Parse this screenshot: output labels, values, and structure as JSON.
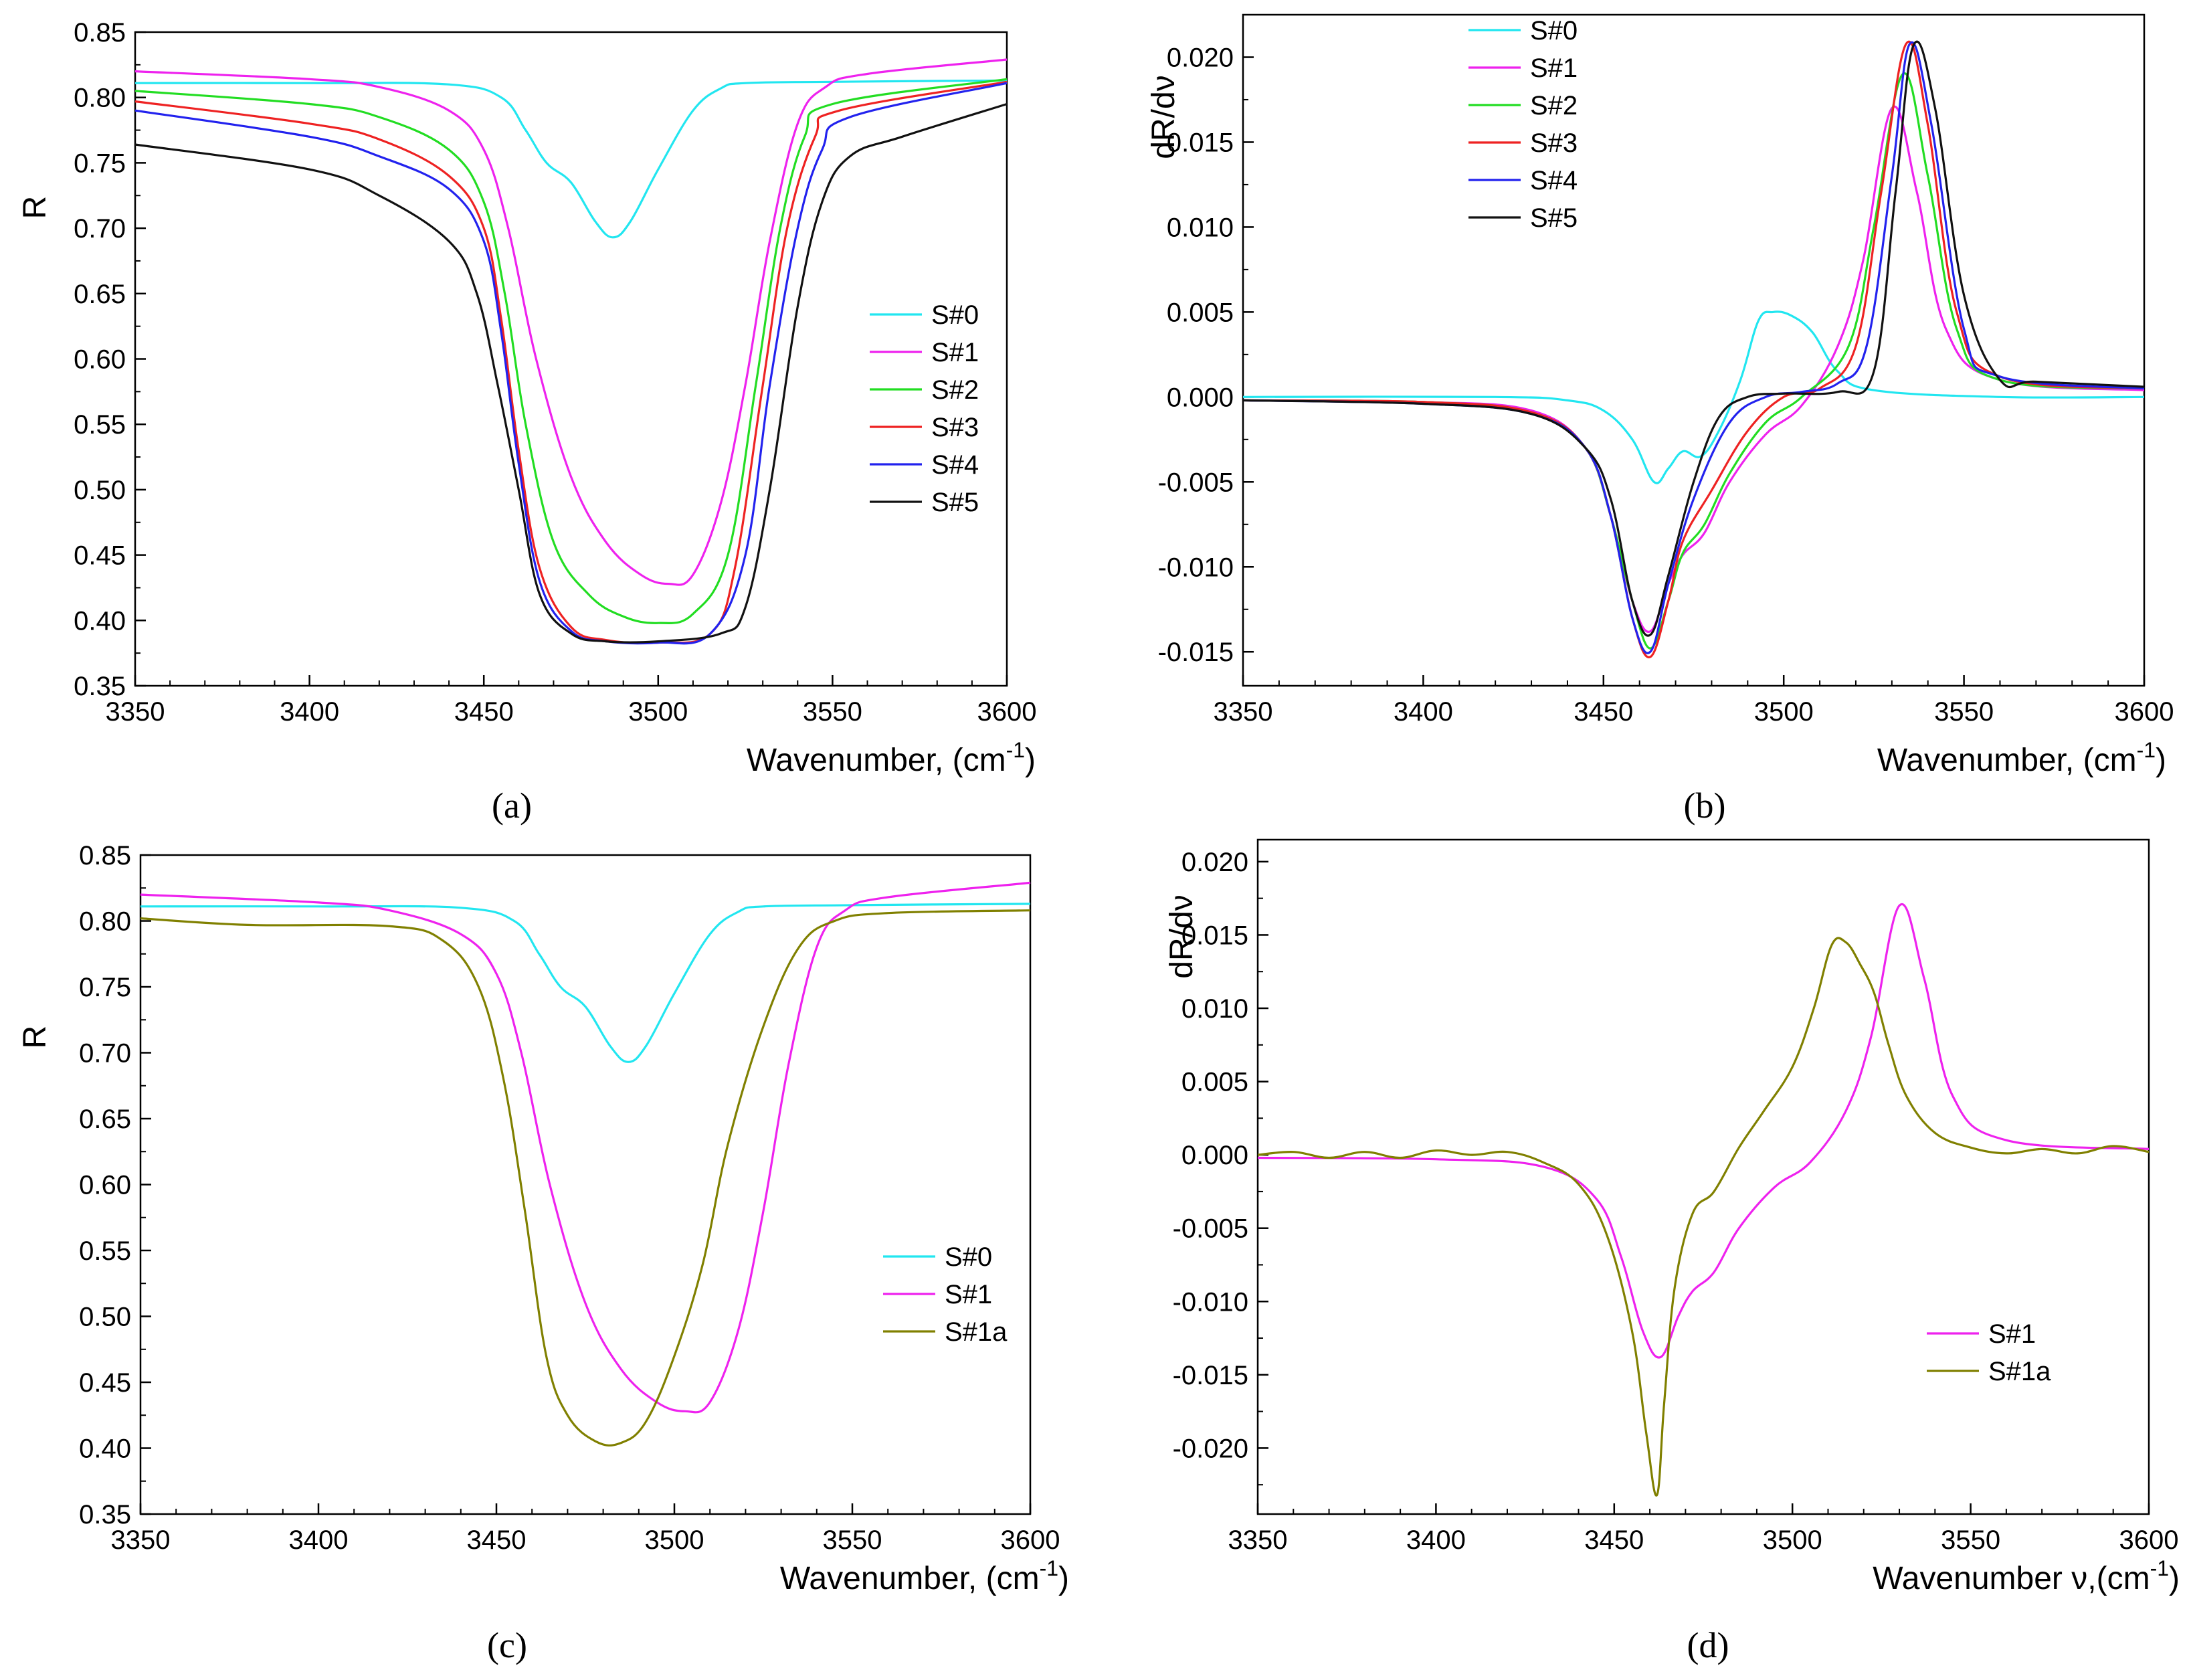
{
  "chart_data": [
    {
      "id": "a",
      "type": "line",
      "caption": "(a)",
      "xlabel": "Wavenumber,",
      "xunit": "(cm",
      "xunit_sup": "-1",
      "xunit_close": ")",
      "ylabel": "R",
      "xlim": [
        3350,
        3600
      ],
      "ylim": [
        0.35,
        0.85
      ],
      "xticks": [
        "3350",
        "3400",
        "3450",
        "3500",
        "3550",
        "3600"
      ],
      "yticks": [
        "0.35",
        "0.40",
        "0.45",
        "0.50",
        "0.55",
        "0.60",
        "0.65",
        "0.70",
        "0.75",
        "0.80",
        "0.85"
      ],
      "legend_position": "center-right",
      "series": [
        {
          "name": "S#0",
          "color": "#22e6f0",
          "x": [
            3350,
            3400,
            3440,
            3455,
            3462,
            3468,
            3475,
            3482,
            3487,
            3492,
            3500,
            3510,
            3518,
            3525,
            3550,
            3600
          ],
          "y": [
            0.811,
            0.811,
            0.81,
            0.8,
            0.775,
            0.75,
            0.735,
            0.705,
            0.693,
            0.705,
            0.745,
            0.79,
            0.807,
            0.811,
            0.812,
            0.813
          ]
        },
        {
          "name": "S#1",
          "color": "#ee22ee",
          "x": [
            3350,
            3400,
            3420,
            3440,
            3450,
            3457,
            3465,
            3475,
            3485,
            3495,
            3503,
            3510,
            3518,
            3525,
            3532,
            3540,
            3548,
            3560,
            3600
          ],
          "y": [
            0.82,
            0.814,
            0.808,
            0.79,
            0.76,
            0.7,
            0.6,
            0.51,
            0.46,
            0.435,
            0.428,
            0.435,
            0.49,
            0.58,
            0.69,
            0.78,
            0.808,
            0.818,
            0.829
          ]
        },
        {
          "name": "S#2",
          "color": "#22dd22",
          "x": [
            3350,
            3400,
            3420,
            3440,
            3450,
            3456,
            3462,
            3470,
            3480,
            3490,
            3500,
            3510,
            3520,
            3528,
            3535,
            3542,
            3550,
            3600
          ],
          "y": [
            0.805,
            0.795,
            0.785,
            0.76,
            0.72,
            0.65,
            0.55,
            0.46,
            0.42,
            0.403,
            0.398,
            0.405,
            0.45,
            0.58,
            0.7,
            0.77,
            0.795,
            0.814
          ]
        },
        {
          "name": "S#3",
          "color": "#ee2222",
          "x": [
            3350,
            3400,
            3420,
            3440,
            3450,
            3455,
            3460,
            3466,
            3475,
            3485,
            3500,
            3515,
            3522,
            3530,
            3537,
            3545,
            3552,
            3600
          ],
          "y": [
            0.797,
            0.78,
            0.768,
            0.74,
            0.7,
            0.63,
            0.53,
            0.44,
            0.395,
            0.385,
            0.383,
            0.39,
            0.44,
            0.58,
            0.7,
            0.77,
            0.79,
            0.812
          ]
        },
        {
          "name": "S#4",
          "color": "#2222ee",
          "x": [
            3350,
            3400,
            3420,
            3440,
            3450,
            3455,
            3460,
            3466,
            3475,
            3485,
            3500,
            3515,
            3525,
            3532,
            3540,
            3547,
            3555,
            3600
          ],
          "y": [
            0.79,
            0.77,
            0.755,
            0.73,
            0.69,
            0.62,
            0.52,
            0.43,
            0.392,
            0.384,
            0.383,
            0.39,
            0.45,
            0.58,
            0.7,
            0.76,
            0.785,
            0.811
          ]
        },
        {
          "name": "S#5",
          "color": "#111111",
          "x": [
            3350,
            3400,
            3420,
            3440,
            3448,
            3454,
            3460,
            3466,
            3475,
            3485,
            3500,
            3518,
            3525,
            3532,
            3540,
            3547,
            3555,
            3570,
            3600
          ],
          "y": [
            0.764,
            0.745,
            0.725,
            0.69,
            0.65,
            0.58,
            0.5,
            0.42,
            0.39,
            0.384,
            0.384,
            0.39,
            0.41,
            0.5,
            0.64,
            0.72,
            0.755,
            0.77,
            0.795
          ]
        }
      ]
    },
    {
      "id": "b",
      "type": "line",
      "caption": "(b)",
      "xlabel": "Wavenumber,",
      "xunit": "(cm",
      "xunit_sup": "-1",
      "xunit_close": ")",
      "ylabel": "dR/dν",
      "xlim": [
        3350,
        3600
      ],
      "ylim": [
        -0.017,
        0.0225
      ],
      "xticks": [
        "3350",
        "3400",
        "3450",
        "3500",
        "3550",
        "3600"
      ],
      "yticks": [
        "-0.015",
        "-0.010",
        "-0.005",
        "0.000",
        "0.005",
        "0.010",
        "0.015",
        "0.020"
      ],
      "ytick_values": [
        -0.015,
        -0.01,
        -0.005,
        0,
        0.005,
        0.01,
        0.015,
        0.02
      ],
      "legend_position": "top-left",
      "series": [
        {
          "name": "S#0",
          "color": "#22e6f0",
          "x": [
            3350,
            3420,
            3440,
            3450,
            3458,
            3464,
            3468,
            3472,
            3477,
            3482,
            3488,
            3493,
            3497,
            3502,
            3508,
            3515,
            3525,
            3560,
            3600
          ],
          "y": [
            0,
            0,
            -0.0002,
            -0.0008,
            -0.0025,
            -0.005,
            -0.0042,
            -0.0032,
            -0.0035,
            -0.002,
            0.001,
            0.0045,
            0.005,
            0.0048,
            0.0038,
            0.0015,
            0.0004,
            0,
            0
          ]
        },
        {
          "name": "S#1",
          "color": "#ee22ee",
          "x": [
            3350,
            3400,
            3430,
            3445,
            3452,
            3458,
            3463,
            3468,
            3472,
            3478,
            3485,
            3495,
            3505,
            3515,
            3522,
            3530,
            3537,
            3545,
            3560,
            3600
          ],
          "y": [
            -0.0002,
            -0.0003,
            -0.0008,
            -0.003,
            -0.007,
            -0.012,
            -0.0138,
            -0.011,
            -0.0093,
            -0.008,
            -0.005,
            -0.0022,
            -0.0005,
            0.003,
            0.008,
            0.017,
            0.012,
            0.004,
            0.001,
            0.0004
          ]
        },
        {
          "name": "S#2",
          "color": "#22dd22",
          "x": [
            3350,
            3400,
            3430,
            3445,
            3452,
            3458,
            3463,
            3468,
            3472,
            3478,
            3485,
            3495,
            3505,
            3518,
            3525,
            3533,
            3540,
            3548,
            3560,
            3600
          ],
          "y": [
            -0.0002,
            -0.0003,
            -0.0009,
            -0.003,
            -0.007,
            -0.012,
            -0.0148,
            -0.012,
            -0.0092,
            -0.0075,
            -0.0045,
            -0.0015,
            0,
            0.003,
            0.01,
            0.019,
            0.013,
            0.004,
            0.001,
            0.0005
          ]
        },
        {
          "name": "S#3",
          "color": "#ee2222",
          "x": [
            3350,
            3400,
            3430,
            3445,
            3452,
            3458,
            3463,
            3468,
            3472,
            3480,
            3490,
            3500,
            3510,
            3520,
            3527,
            3534,
            3540,
            3548,
            3560,
            3600
          ],
          "y": [
            -0.0002,
            -0.0003,
            -0.0009,
            -0.003,
            -0.007,
            -0.013,
            -0.0153,
            -0.012,
            -0.0085,
            -0.0055,
            -0.002,
            0,
            0.0005,
            0.003,
            0.012,
            0.0208,
            0.016,
            0.005,
            0.0012,
            0.0005
          ]
        },
        {
          "name": "S#4",
          "color": "#2222ee",
          "x": [
            3350,
            3400,
            3430,
            3445,
            3452,
            3458,
            3463,
            3468,
            3475,
            3485,
            3495,
            3505,
            3515,
            3523,
            3530,
            3535,
            3541,
            3550,
            3560,
            3600
          ],
          "y": [
            -0.0002,
            -0.0004,
            -0.001,
            -0.003,
            -0.007,
            -0.013,
            -0.015,
            -0.011,
            -0.006,
            -0.0015,
            0,
            0.0003,
            0.0008,
            0.003,
            0.013,
            0.0208,
            0.016,
            0.004,
            0.0012,
            0.0005
          ]
        },
        {
          "name": "S#5",
          "color": "#111111",
          "x": [
            3350,
            3400,
            3430,
            3445,
            3452,
            3458,
            3463,
            3468,
            3475,
            3482,
            3490,
            3500,
            3515,
            3525,
            3531,
            3536,
            3542,
            3550,
            3560,
            3570,
            3600
          ],
          "y": [
            -0.0002,
            -0.0004,
            -0.001,
            -0.003,
            -0.006,
            -0.012,
            -0.014,
            -0.0105,
            -0.005,
            -0.0012,
            0,
            0.0002,
            0.0003,
            0.0015,
            0.012,
            0.0207,
            0.017,
            0.006,
            0.001,
            0.0009,
            0.0006
          ]
        }
      ]
    },
    {
      "id": "c",
      "type": "line",
      "caption": "(c)",
      "xlabel": "Wavenumber,",
      "xunit": "(cm",
      "xunit_sup": "-1",
      "xunit_close": ")",
      "ylabel": "R",
      "xlim": [
        3350,
        3600
      ],
      "ylim": [
        0.35,
        0.85
      ],
      "xticks": [
        "3350",
        "3400",
        "3450",
        "3500",
        "3550",
        "3600"
      ],
      "yticks": [
        "0.35",
        "0.40",
        "0.45",
        "0.50",
        "0.55",
        "0.60",
        "0.65",
        "0.70",
        "0.75",
        "0.80",
        "0.85"
      ],
      "legend_position": "center-right",
      "series": [
        {
          "name": "S#0",
          "color": "#22e6f0",
          "x": [
            3350,
            3400,
            3440,
            3455,
            3462,
            3468,
            3475,
            3482,
            3487,
            3492,
            3500,
            3510,
            3518,
            3525,
            3550,
            3600
          ],
          "y": [
            0.811,
            0.811,
            0.81,
            0.8,
            0.775,
            0.75,
            0.735,
            0.705,
            0.693,
            0.705,
            0.745,
            0.79,
            0.807,
            0.811,
            0.812,
            0.813
          ]
        },
        {
          "name": "S#1",
          "color": "#ee22ee",
          "x": [
            3350,
            3400,
            3420,
            3440,
            3450,
            3457,
            3465,
            3475,
            3485,
            3495,
            3503,
            3510,
            3518,
            3525,
            3532,
            3540,
            3548,
            3560,
            3600
          ],
          "y": [
            0.82,
            0.814,
            0.808,
            0.79,
            0.76,
            0.7,
            0.6,
            0.51,
            0.46,
            0.435,
            0.428,
            0.435,
            0.49,
            0.58,
            0.69,
            0.78,
            0.808,
            0.818,
            0.829
          ]
        },
        {
          "name": "S#1a",
          "color": "#808000",
          "x": [
            3350,
            3380,
            3420,
            3435,
            3445,
            3452,
            3458,
            3464,
            3470,
            3478,
            3485,
            3492,
            3500,
            3508,
            3515,
            3525,
            3535,
            3545,
            3560,
            3600
          ],
          "y": [
            0.802,
            0.797,
            0.796,
            0.785,
            0.75,
            0.68,
            0.58,
            0.47,
            0.425,
            0.405,
            0.404,
            0.42,
            0.47,
            0.54,
            0.63,
            0.72,
            0.78,
            0.8,
            0.806,
            0.808
          ]
        }
      ]
    },
    {
      "id": "d",
      "type": "line",
      "caption": "(d)",
      "xlabel": "Wavenumber",
      "xsym": "ν,",
      "xunit": "(cm",
      "xunit_sup": "-1",
      "xunit_close": ")",
      "ylabel": "dR/dν",
      "xlim": [
        3350,
        3600
      ],
      "ylim": [
        -0.0245,
        0.0215
      ],
      "xticks": [
        "3350",
        "3400",
        "3450",
        "3500",
        "3550",
        "3600"
      ],
      "yticks": [
        "-0.020",
        "-0.015",
        "-0.010",
        "-0.005",
        "0.000",
        "0.005",
        "0.010",
        "0.015",
        "0.020"
      ],
      "ytick_values": [
        -0.02,
        -0.015,
        -0.01,
        -0.005,
        0,
        0.005,
        0.01,
        0.015,
        0.02
      ],
      "legend_position": "bottom-right",
      "series": [
        {
          "name": "S#1",
          "color": "#ee22ee",
          "x": [
            3350,
            3400,
            3430,
            3445,
            3452,
            3458,
            3463,
            3468,
            3472,
            3478,
            3485,
            3495,
            3505,
            3515,
            3522,
            3530,
            3537,
            3545,
            3560,
            3600
          ],
          "y": [
            -0.0002,
            -0.0003,
            -0.0008,
            -0.003,
            -0.007,
            -0.012,
            -0.0138,
            -0.011,
            -0.0093,
            -0.008,
            -0.005,
            -0.0022,
            -0.0005,
            0.003,
            0.008,
            0.017,
            0.012,
            0.004,
            0.001,
            0.0004
          ]
        },
        {
          "name": "S#1a",
          "color": "#808000",
          "x": [
            3350,
            3360,
            3370,
            3380,
            3390,
            3400,
            3410,
            3420,
            3430,
            3440,
            3448,
            3455,
            3459,
            3462,
            3464,
            3467,
            3472,
            3478,
            3485,
            3492,
            3500,
            3506,
            3511,
            3515,
            3519,
            3523,
            3527,
            3532,
            3540,
            3550,
            3560,
            3570,
            3580,
            3590,
            3600
          ],
          "y": [
            0,
            0.0002,
            -0.0002,
            0.0002,
            -0.0002,
            0.0003,
            0,
            0.0002,
            -0.0005,
            -0.002,
            -0.0055,
            -0.012,
            -0.019,
            -0.0232,
            -0.017,
            -0.009,
            -0.004,
            -0.0025,
            0.0005,
            0.003,
            0.006,
            0.01,
            0.0143,
            0.0145,
            0.013,
            0.011,
            0.0075,
            0.004,
            0.0015,
            0.0005,
            0.0001,
            0.0004,
            0.0001,
            0.0006,
            0.0002
          ]
        }
      ]
    }
  ]
}
